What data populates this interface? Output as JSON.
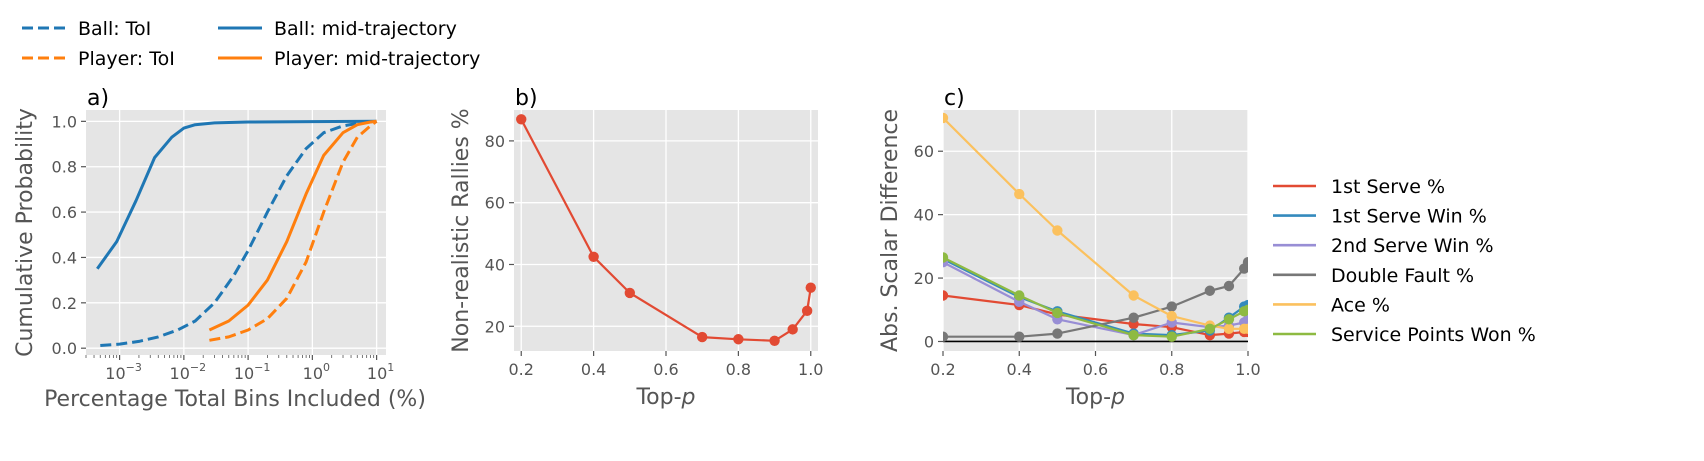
{
  "top_legend": [
    {
      "label": "Ball: ToI",
      "color": "#1f77b4",
      "dash": true
    },
    {
      "label": "Player: ToI",
      "color": "#ff7f0e",
      "dash": true
    },
    {
      "label": "Ball: mid-trajectory",
      "color": "#1f77b4",
      "dash": false
    },
    {
      "label": "Player: mid-trajectory",
      "color": "#ff7f0e",
      "dash": false
    }
  ],
  "chart_data": [
    {
      "type": "line",
      "panel_label": "a)",
      "xlabel": "Percentage Total Bins Included (%)",
      "ylabel": "Cumulative Probability",
      "xscale": "log",
      "xlim": [
        0.0003,
        14
      ],
      "ylim": [
        -0.03,
        1.05
      ],
      "xticks": [
        0.001,
        0.01,
        0.1,
        1,
        10
      ],
      "xtick_labels": [
        {
          "base": "10",
          "exp": "−3"
        },
        {
          "base": "10",
          "exp": "−2"
        },
        {
          "base": "10",
          "exp": "−1"
        },
        {
          "base": "10",
          "exp": "0"
        },
        {
          "base": "10",
          "exp": "1"
        }
      ],
      "yticks": [
        0.0,
        0.2,
        0.4,
        0.6,
        0.8,
        1.0
      ],
      "ytick_labels": [
        "0.0",
        "0.2",
        "0.4",
        "0.6",
        "0.8",
        "1.0"
      ],
      "grid": true,
      "series": [
        {
          "name": "Ball: ToI",
          "color": "#1f77b4",
          "dash": true,
          "x": [
            0.0005,
            0.001,
            0.002,
            0.004,
            0.008,
            0.015,
            0.03,
            0.06,
            0.1,
            0.2,
            0.4,
            0.8,
            1.5,
            3,
            6,
            10
          ],
          "y": [
            0.012,
            0.018,
            0.03,
            0.05,
            0.08,
            0.12,
            0.2,
            0.32,
            0.43,
            0.6,
            0.76,
            0.88,
            0.95,
            0.98,
            0.995,
            1.0
          ]
        },
        {
          "name": "Player: ToI",
          "color": "#ff7f0e",
          "dash": true,
          "x": [
            0.025,
            0.05,
            0.1,
            0.2,
            0.4,
            0.8,
            1.5,
            3,
            5,
            8,
            10
          ],
          "y": [
            0.035,
            0.05,
            0.08,
            0.13,
            0.22,
            0.38,
            0.6,
            0.82,
            0.93,
            0.98,
            1.0
          ]
        },
        {
          "name": "Ball: mid-trajectory",
          "color": "#1f77b4",
          "dash": false,
          "x": [
            0.00045,
            0.0009,
            0.0018,
            0.0035,
            0.0065,
            0.01,
            0.015,
            0.03,
            0.1,
            1,
            10
          ],
          "y": [
            0.35,
            0.47,
            0.65,
            0.84,
            0.93,
            0.97,
            0.985,
            0.993,
            0.997,
            0.999,
            1.0
          ]
        },
        {
          "name": "Player: mid-trajectory",
          "color": "#ff7f0e",
          "dash": false,
          "x": [
            0.025,
            0.05,
            0.1,
            0.2,
            0.4,
            0.8,
            1.5,
            3,
            5,
            8,
            10
          ],
          "y": [
            0.08,
            0.12,
            0.19,
            0.3,
            0.47,
            0.68,
            0.85,
            0.95,
            0.985,
            0.997,
            1.0
          ]
        }
      ]
    },
    {
      "type": "line",
      "panel_label": "b)",
      "xlabel": "Top-p",
      "ylabel": "Non-realistic Rallies %",
      "xlim": [
        0.18,
        1.02
      ],
      "ylim": [
        12,
        90
      ],
      "xticks": [
        0.2,
        0.4,
        0.6,
        0.8,
        1.0
      ],
      "xtick_labels": [
        "0.2",
        "0.4",
        "0.6",
        "0.8",
        "1.0"
      ],
      "yticks": [
        20,
        40,
        60,
        80
      ],
      "ytick_labels": [
        "20",
        "40",
        "60",
        "80"
      ],
      "grid": true,
      "markers": true,
      "series": [
        {
          "name": "",
          "color": "#e24a33",
          "x": [
            0.2,
            0.4,
            0.5,
            0.7,
            0.8,
            0.9,
            0.95,
            0.99,
            1.0
          ],
          "y": [
            87,
            42.5,
            30.8,
            16.5,
            15.8,
            15.3,
            19,
            25,
            32.5
          ]
        }
      ]
    },
    {
      "type": "line",
      "panel_label": "c)",
      "xlabel": "Top-p",
      "ylabel": "Abs. Scalar Difference",
      "xlim": [
        0.2,
        1.0
      ],
      "ylim": [
        -3,
        73
      ],
      "xticks": [
        0.2,
        0.4,
        0.6,
        0.8,
        1.0
      ],
      "xtick_labels": [
        "0.2",
        "0.4",
        "0.6",
        "0.8",
        "1.0"
      ],
      "yticks": [
        0,
        20,
        40,
        60
      ],
      "ytick_labels": [
        "0",
        "20",
        "40",
        "60"
      ],
      "grid": true,
      "markers": true,
      "zero_line": true,
      "legend_position": "right",
      "x": [
        0.2,
        0.4,
        0.5,
        0.7,
        0.8,
        0.9,
        0.95,
        0.99,
        1.0
      ],
      "series": [
        {
          "name": "1st Serve %",
          "color": "#e24a33",
          "values": [
            14.5,
            11.5,
            8.5,
            5.5,
            4.5,
            2,
            2.5,
            3,
            3
          ]
        },
        {
          "name": "1st Serve Win %",
          "color": "#348abd",
          "values": [
            26,
            14,
            9.5,
            2.5,
            2,
            3.5,
            7.5,
            11,
            11.5
          ]
        },
        {
          "name": "2nd Serve Win %",
          "color": "#988ed5",
          "values": [
            25,
            12.5,
            7,
            2,
            6,
            4.5,
            5,
            6,
            7
          ]
        },
        {
          "name": "Double Fault %",
          "color": "#777777",
          "values": [
            1.5,
            1.5,
            2.5,
            7.5,
            11,
            16,
            17.5,
            23,
            25
          ]
        },
        {
          "name": "Ace %",
          "color": "#fbc15e",
          "values": [
            70.5,
            46.5,
            35,
            14.5,
            8,
            5,
            4,
            4,
            4
          ]
        },
        {
          "name": "Service Points Won %",
          "color": "#8eba42",
          "values": [
            26.5,
            14.5,
            9,
            2,
            1.5,
            4,
            7,
            9.5,
            10
          ]
        }
      ]
    }
  ]
}
